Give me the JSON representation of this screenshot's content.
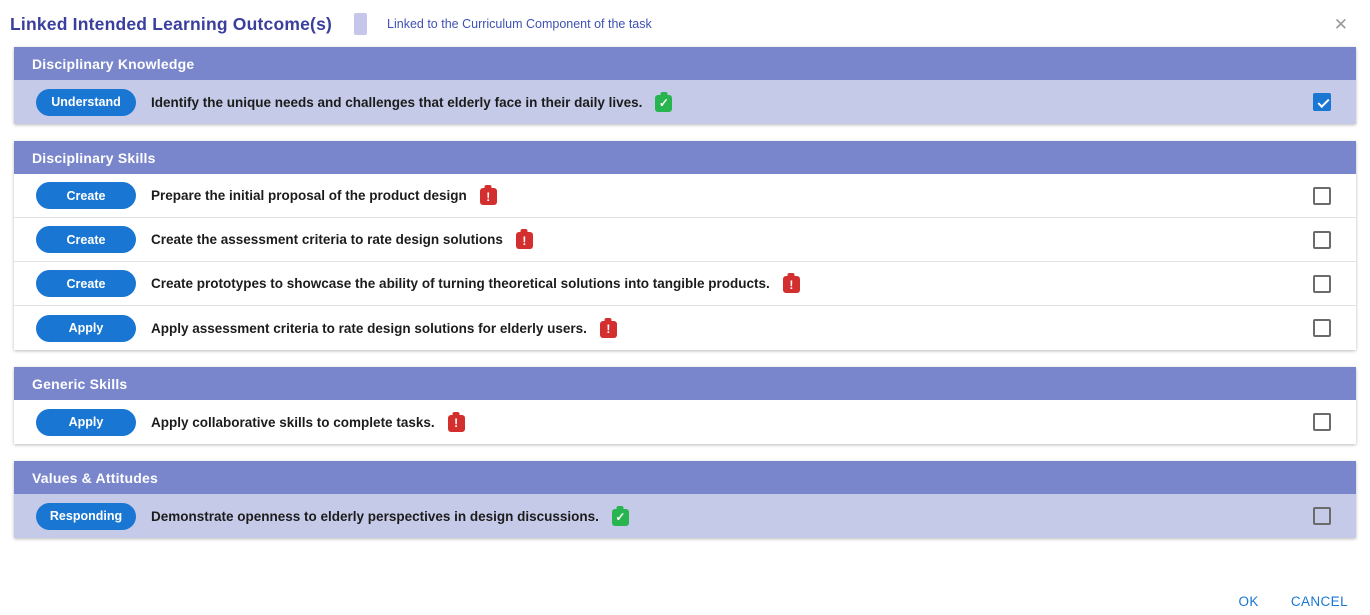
{
  "modal": {
    "title": "Linked Intended Learning Outcome(s)",
    "legend_label": "Linked to the Curriculum Component of the task",
    "close_glyph": "✕"
  },
  "icons": {
    "linked": "✓",
    "warning": "!"
  },
  "colors": {
    "title_text": "#3a3f9e",
    "legend_text": "#3f51b5",
    "legend_swatch": "#c5c6ea",
    "section_header_bg": "#7986cb",
    "linked_row_bg": "#c5cae9",
    "pill_bg": "#1976d2",
    "linked_icon_green": "#28b44e",
    "warning_icon_red": "#d32f2f",
    "accent_blue": "#1976d2"
  },
  "sections": [
    {
      "title": "Disciplinary Knowledge",
      "rows": [
        {
          "level": "Understand",
          "text": "Identify the unique needs and challenges that elderly face in their daily lives.",
          "status": "linked",
          "checked": true
        }
      ]
    },
    {
      "title": "Disciplinary Skills",
      "rows": [
        {
          "level": "Create",
          "text": "Prepare the initial proposal of the product design",
          "status": "warning",
          "checked": false
        },
        {
          "level": "Create",
          "text": "Create the assessment criteria to rate design solutions",
          "status": "warning",
          "checked": false
        },
        {
          "level": "Create",
          "text": "Create prototypes to showcase the ability of turning theoretical solutions into tangible products.",
          "status": "warning",
          "checked": false
        },
        {
          "level": "Apply",
          "text": "Apply assessment criteria to rate design solutions for elderly users.",
          "status": "warning",
          "checked": false
        }
      ]
    },
    {
      "title": "Generic Skills",
      "rows": [
        {
          "level": "Apply",
          "text": "Apply collaborative skills to complete tasks.",
          "status": "warning",
          "checked": false
        }
      ]
    },
    {
      "title": "Values & Attitudes",
      "rows": [
        {
          "level": "Responding",
          "text": "Demonstrate openness to elderly perspectives in design discussions.",
          "status": "linked",
          "checked": false
        }
      ]
    }
  ],
  "footer": {
    "ok_label": "OK",
    "cancel_label": "CANCEL"
  }
}
